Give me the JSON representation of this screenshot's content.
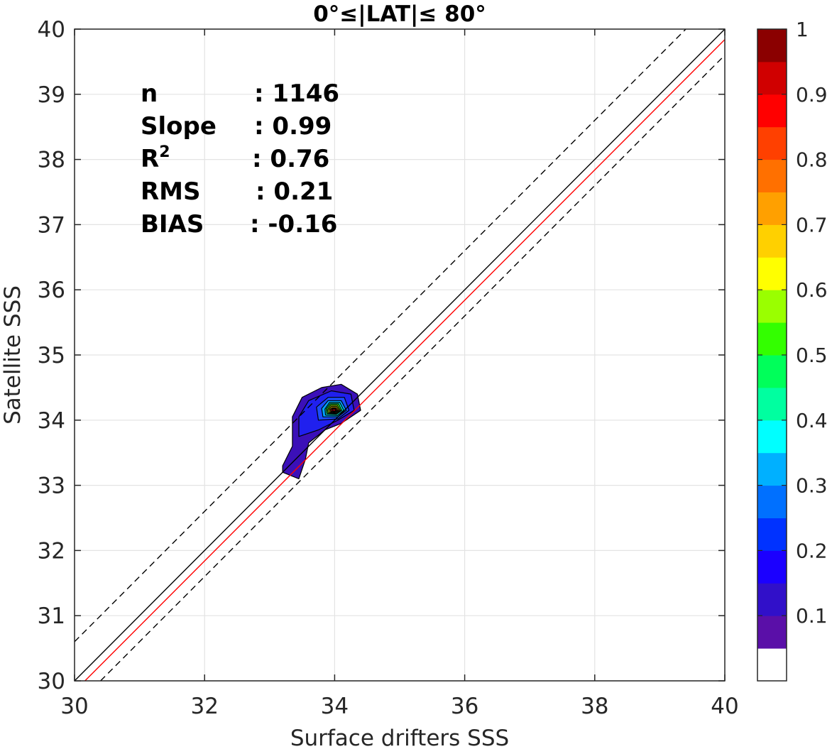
{
  "chart_data": {
    "type": "contour",
    "title": "0°≤|LAT|≤ 80°",
    "xlabel": "Surface drifters SSS",
    "ylabel": "Satellite SSS",
    "xlim": [
      30,
      40
    ],
    "ylim": [
      30,
      40
    ],
    "xticks": [
      "30",
      "32",
      "34",
      "36",
      "38",
      "40"
    ],
    "yticks": [
      "30",
      "31",
      "32",
      "33",
      "34",
      "35",
      "36",
      "37",
      "38",
      "39",
      "40"
    ],
    "grid": true,
    "stats": [
      {
        "label": "n",
        "value": ": 1146"
      },
      {
        "label": "Slope",
        "value": ": 0.99"
      },
      {
        "label": "R",
        "sup": "2",
        "value": ": 0.76"
      },
      {
        "label": "RMS",
        "value": ": 0.21"
      },
      {
        "label": "BIAS",
        "value": ": -0.16"
      }
    ],
    "lines": [
      {
        "kind": "one-to-one",
        "color": "#000000",
        "dash": "solid",
        "slope": 1,
        "intercept": 0
      },
      {
        "kind": "upper-bound",
        "color": "#000000",
        "dash": "dashed",
        "slope": 1,
        "intercept": 0.6
      },
      {
        "kind": "lower-bound",
        "color": "#000000",
        "dash": "dashed",
        "slope": 1,
        "intercept": -0.4
      },
      {
        "kind": "fit",
        "color": "#ff0000",
        "dash": "solid",
        "slope": 1,
        "intercept": -0.16
      }
    ],
    "density_levels": [
      {
        "level": 0.05,
        "color": "#3b10b8",
        "ring": [
          [
            33.2,
            33.2
          ],
          [
            33.45,
            33.1
          ],
          [
            33.55,
            33.4
          ],
          [
            33.6,
            33.65
          ],
          [
            33.85,
            33.85
          ],
          [
            34.1,
            33.95
          ],
          [
            34.4,
            34.15
          ],
          [
            34.35,
            34.4
          ],
          [
            34.1,
            34.55
          ],
          [
            33.8,
            34.5
          ],
          [
            33.5,
            34.35
          ],
          [
            33.35,
            34.05
          ],
          [
            33.35,
            33.6
          ],
          [
            33.2,
            33.3
          ]
        ]
      },
      {
        "level": 0.1,
        "color": "#2020ee",
        "ring": [
          [
            33.45,
            33.75
          ],
          [
            33.75,
            33.85
          ],
          [
            34.05,
            34.0
          ],
          [
            34.3,
            34.15
          ],
          [
            34.25,
            34.4
          ],
          [
            33.95,
            34.45
          ],
          [
            33.6,
            34.3
          ],
          [
            33.45,
            34.05
          ]
        ]
      },
      {
        "level": 0.2,
        "color": "#1a4dff",
        "ring": [
          [
            33.75,
            34.0
          ],
          [
            34.05,
            34.02
          ],
          [
            34.22,
            34.15
          ],
          [
            34.15,
            34.35
          ],
          [
            33.9,
            34.35
          ],
          [
            33.72,
            34.2
          ]
        ]
      },
      {
        "level": 0.3,
        "color": "#00a2ff",
        "ring": [
          [
            33.82,
            34.05
          ],
          [
            34.05,
            34.05
          ],
          [
            34.18,
            34.15
          ],
          [
            34.1,
            34.3
          ],
          [
            33.9,
            34.3
          ],
          [
            33.8,
            34.18
          ]
        ]
      },
      {
        "level": 0.4,
        "color": "#00ffd2",
        "ring": [
          [
            33.86,
            34.08
          ],
          [
            34.04,
            34.07
          ],
          [
            34.14,
            34.15
          ],
          [
            34.08,
            34.27
          ],
          [
            33.92,
            34.27
          ],
          [
            33.85,
            34.17
          ]
        ]
      },
      {
        "level": 0.5,
        "color": "#39ff1b",
        "ring": [
          [
            33.88,
            34.1
          ],
          [
            34.03,
            34.09
          ],
          [
            34.11,
            34.15
          ],
          [
            34.06,
            34.25
          ],
          [
            33.93,
            34.25
          ],
          [
            33.87,
            34.17
          ]
        ]
      },
      {
        "level": 0.6,
        "color": "#b2ff00",
        "ring": [
          [
            33.9,
            34.11
          ],
          [
            34.02,
            34.1
          ],
          [
            34.09,
            34.15
          ],
          [
            34.04,
            34.23
          ],
          [
            33.94,
            34.23
          ],
          [
            33.89,
            34.16
          ]
        ]
      },
      {
        "level": 0.7,
        "color": "#ffc400",
        "ring": [
          [
            33.92,
            34.12
          ],
          [
            34.01,
            34.11
          ],
          [
            34.07,
            34.15
          ],
          [
            34.03,
            34.21
          ],
          [
            33.95,
            34.21
          ],
          [
            33.91,
            34.16
          ]
        ]
      },
      {
        "level": 0.8,
        "color": "#ff5500",
        "ring": [
          [
            33.94,
            34.13
          ],
          [
            34.0,
            34.12
          ],
          [
            34.05,
            34.15
          ],
          [
            34.02,
            34.19
          ],
          [
            33.96,
            34.19
          ],
          [
            33.93,
            34.16
          ]
        ]
      },
      {
        "level": 0.9,
        "color": "#ff0000",
        "ring": [
          [
            33.95,
            34.14
          ],
          [
            34.0,
            34.13
          ],
          [
            34.03,
            34.15
          ],
          [
            34.01,
            34.18
          ],
          [
            33.97,
            34.18
          ],
          [
            33.95,
            34.16
          ]
        ]
      },
      {
        "level": 0.95,
        "color": "#c00000",
        "ring": [
          [
            33.97,
            34.14
          ],
          [
            34.01,
            34.14
          ],
          [
            34.02,
            34.16
          ],
          [
            34.0,
            34.17
          ],
          [
            33.97,
            34.17
          ]
        ]
      }
    ],
    "colorbar": {
      "ticks": [
        "0.1",
        "0.2",
        "0.3",
        "0.4",
        "0.5",
        "0.6",
        "0.7",
        "0.8",
        "0.9",
        "1"
      ],
      "colors": [
        "#ffffff",
        "#5a0fa8",
        "#3110c9",
        "#1b00ff",
        "#0032ff",
        "#0070ff",
        "#00b0ff",
        "#00ffff",
        "#00ffa0",
        "#00ff5a",
        "#33ff00",
        "#9aff00",
        "#ffff00",
        "#ffd000",
        "#ffa000",
        "#ff7000",
        "#ff4000",
        "#ff0000",
        "#d00000",
        "#8b0000"
      ]
    }
  }
}
